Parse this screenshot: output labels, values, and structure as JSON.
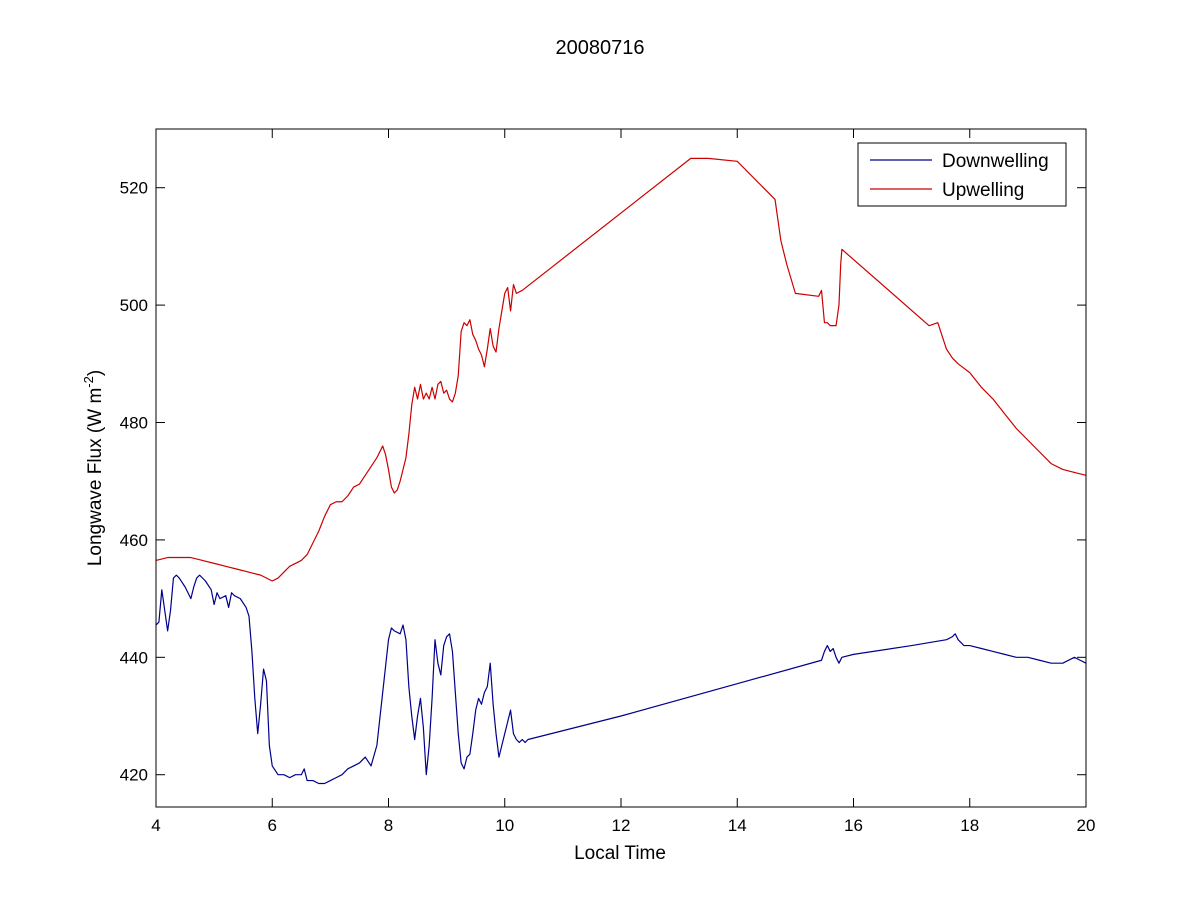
{
  "chart_data": {
    "type": "line",
    "title": "20080716",
    "xlabel": "Local Time",
    "ylabel": "Longwave Flux (W m",
    "ylabel_sup": "-2",
    "ylabel_tail": ")",
    "xlim": [
      4,
      20
    ],
    "ylim": [
      414.5,
      530
    ],
    "xticks": [
      4,
      6,
      8,
      10,
      12,
      14,
      16,
      18,
      20
    ],
    "yticks": [
      420,
      440,
      460,
      480,
      500,
      520
    ],
    "grid": false,
    "legend_position": "top-right",
    "series": [
      {
        "name": "Downwelling",
        "color": "#00008b",
        "x": [
          4.0,
          4.05,
          4.1,
          4.15,
          4.2,
          4.25,
          4.3,
          4.35,
          4.4,
          4.5,
          4.6,
          4.65,
          4.7,
          4.75,
          4.85,
          4.95,
          5.0,
          5.05,
          5.1,
          5.2,
          5.25,
          5.3,
          5.35,
          5.45,
          5.55,
          5.6,
          5.65,
          5.7,
          5.75,
          5.8,
          5.85,
          5.9,
          5.95,
          6.0,
          6.1,
          6.2,
          6.3,
          6.4,
          6.5,
          6.55,
          6.6,
          6.7,
          6.8,
          6.9,
          7.0,
          7.1,
          7.2,
          7.3,
          7.4,
          7.5,
          7.6,
          7.7,
          7.8,
          7.9,
          8.0,
          8.05,
          8.1,
          8.2,
          8.25,
          8.3,
          8.35,
          8.4,
          8.45,
          8.5,
          8.55,
          8.6,
          8.65,
          8.7,
          8.75,
          8.8,
          8.85,
          8.9,
          8.95,
          9.0,
          9.05,
          9.1,
          9.15,
          9.2,
          9.25,
          9.3,
          9.35,
          9.4,
          9.45,
          9.5,
          9.55,
          9.6,
          9.65,
          9.7,
          9.75,
          9.8,
          9.85,
          9.9,
          9.95,
          10.0,
          10.05,
          10.1,
          10.15,
          10.2,
          10.25,
          10.3,
          10.35,
          10.4,
          12.0,
          14.0,
          15.45,
          15.5,
          15.55,
          15.6,
          15.65,
          15.7,
          15.75,
          15.8,
          16.0,
          17.0,
          17.6,
          17.7,
          17.75,
          17.8,
          17.9,
          18.0,
          18.2,
          18.4,
          18.6,
          18.8,
          19.0,
          19.2,
          19.4,
          19.6,
          19.8,
          19.9,
          20.0
        ],
        "values": [
          445.5,
          446.0,
          451.5,
          448.0,
          444.5,
          448.0,
          453.5,
          454.0,
          453.5,
          452.0,
          450.0,
          452.0,
          453.5,
          454.0,
          453.0,
          451.5,
          449.0,
          451.0,
          450.0,
          450.5,
          448.5,
          451.0,
          450.5,
          450.0,
          448.5,
          447.0,
          441.0,
          433.0,
          427.0,
          432.0,
          438.0,
          436.0,
          425.0,
          421.5,
          420.0,
          420.0,
          419.5,
          420.0,
          420.0,
          421.0,
          419.0,
          419.0,
          418.5,
          418.5,
          419.0,
          419.5,
          420.0,
          421.0,
          421.5,
          422.0,
          423.0,
          421.5,
          425.0,
          434.0,
          443.0,
          445.0,
          444.5,
          444.0,
          445.5,
          443.0,
          435.0,
          430.0,
          426.0,
          430.0,
          433.0,
          428.0,
          420.0,
          425.0,
          433.0,
          443.0,
          439.0,
          437.0,
          442.0,
          443.5,
          444.0,
          441.0,
          434.0,
          427.0,
          422.0,
          421.0,
          423.0,
          423.5,
          427.0,
          431.0,
          433.0,
          432.0,
          434.0,
          435.0,
          439.0,
          432.0,
          427.0,
          423.0,
          425.0,
          427.0,
          429.0,
          431.0,
          427.0,
          426.0,
          425.5,
          426.0,
          425.5,
          426.0,
          430.0,
          435.5,
          439.5,
          441.0,
          442.0,
          441.0,
          441.5,
          440.0,
          439.0,
          440.0,
          440.5,
          442.0,
          443.0,
          443.5,
          444.0,
          443.0,
          442.0,
          442.0,
          441.5,
          441.0,
          440.5,
          440.0,
          440.0,
          439.5,
          439.0,
          439.0,
          440.0,
          439.5,
          439.0
        ]
      },
      {
        "name": "Upwelling",
        "color": "#cc0000",
        "x": [
          4.0,
          4.2,
          4.4,
          4.6,
          4.8,
          5.0,
          5.2,
          5.4,
          5.6,
          5.8,
          6.0,
          6.1,
          6.2,
          6.3,
          6.5,
          6.6,
          6.7,
          6.8,
          6.9,
          7.0,
          7.1,
          7.2,
          7.3,
          7.4,
          7.5,
          7.6,
          7.7,
          7.8,
          7.9,
          7.95,
          8.0,
          8.05,
          8.1,
          8.15,
          8.2,
          8.25,
          8.3,
          8.35,
          8.4,
          8.45,
          8.5,
          8.55,
          8.6,
          8.65,
          8.7,
          8.75,
          8.8,
          8.85,
          8.9,
          8.95,
          9.0,
          9.05,
          9.1,
          9.15,
          9.2,
          9.25,
          9.3,
          9.35,
          9.4,
          9.45,
          9.5,
          9.55,
          9.6,
          9.65,
          9.7,
          9.75,
          9.8,
          9.85,
          9.9,
          9.95,
          10.0,
          10.05,
          10.1,
          10.15,
          10.2,
          10.3,
          13.2,
          13.5,
          14.0,
          14.65,
          14.75,
          14.85,
          15.0,
          15.4,
          15.45,
          15.5,
          15.55,
          15.6,
          15.65,
          15.7,
          15.75,
          15.78,
          15.8,
          17.3,
          17.45,
          17.5,
          17.6,
          17.7,
          17.8,
          18.0,
          18.2,
          18.4,
          18.6,
          18.8,
          19.0,
          19.2,
          19.4,
          19.6,
          19.8,
          20.0
        ],
        "values": [
          456.5,
          457.0,
          457.0,
          457.0,
          456.5,
          456.0,
          455.5,
          455.0,
          454.5,
          454.0,
          453.0,
          453.5,
          454.5,
          455.5,
          456.5,
          457.5,
          459.5,
          461.5,
          464.0,
          466.0,
          466.5,
          466.5,
          467.5,
          469.0,
          469.5,
          471.0,
          472.5,
          474.0,
          476.0,
          474.5,
          472.0,
          469.0,
          468.0,
          468.5,
          470.0,
          472.0,
          474.0,
          478.0,
          483.0,
          486.0,
          484.0,
          486.5,
          484.0,
          485.0,
          484.0,
          486.0,
          484.0,
          486.5,
          487.0,
          485.0,
          485.5,
          484.0,
          483.5,
          485.0,
          488.0,
          495.5,
          497.0,
          496.5,
          497.5,
          495.0,
          494.0,
          492.5,
          491.5,
          489.5,
          492.5,
          496.0,
          493.0,
          492.0,
          496.0,
          499.0,
          502.0,
          503.0,
          499.0,
          503.5,
          502.0,
          502.5,
          525.0,
          525.0,
          524.5,
          518.0,
          511.0,
          507.0,
          502.0,
          501.5,
          502.5,
          497.0,
          497.0,
          496.5,
          496.5,
          496.5,
          500.0,
          507.0,
          509.5,
          496.5,
          497.0,
          495.5,
          492.5,
          491.0,
          490.0,
          488.5,
          486.0,
          484.0,
          481.5,
          479.0,
          477.0,
          475.0,
          473.0,
          472.0,
          471.5,
          471.0
        ]
      }
    ]
  }
}
